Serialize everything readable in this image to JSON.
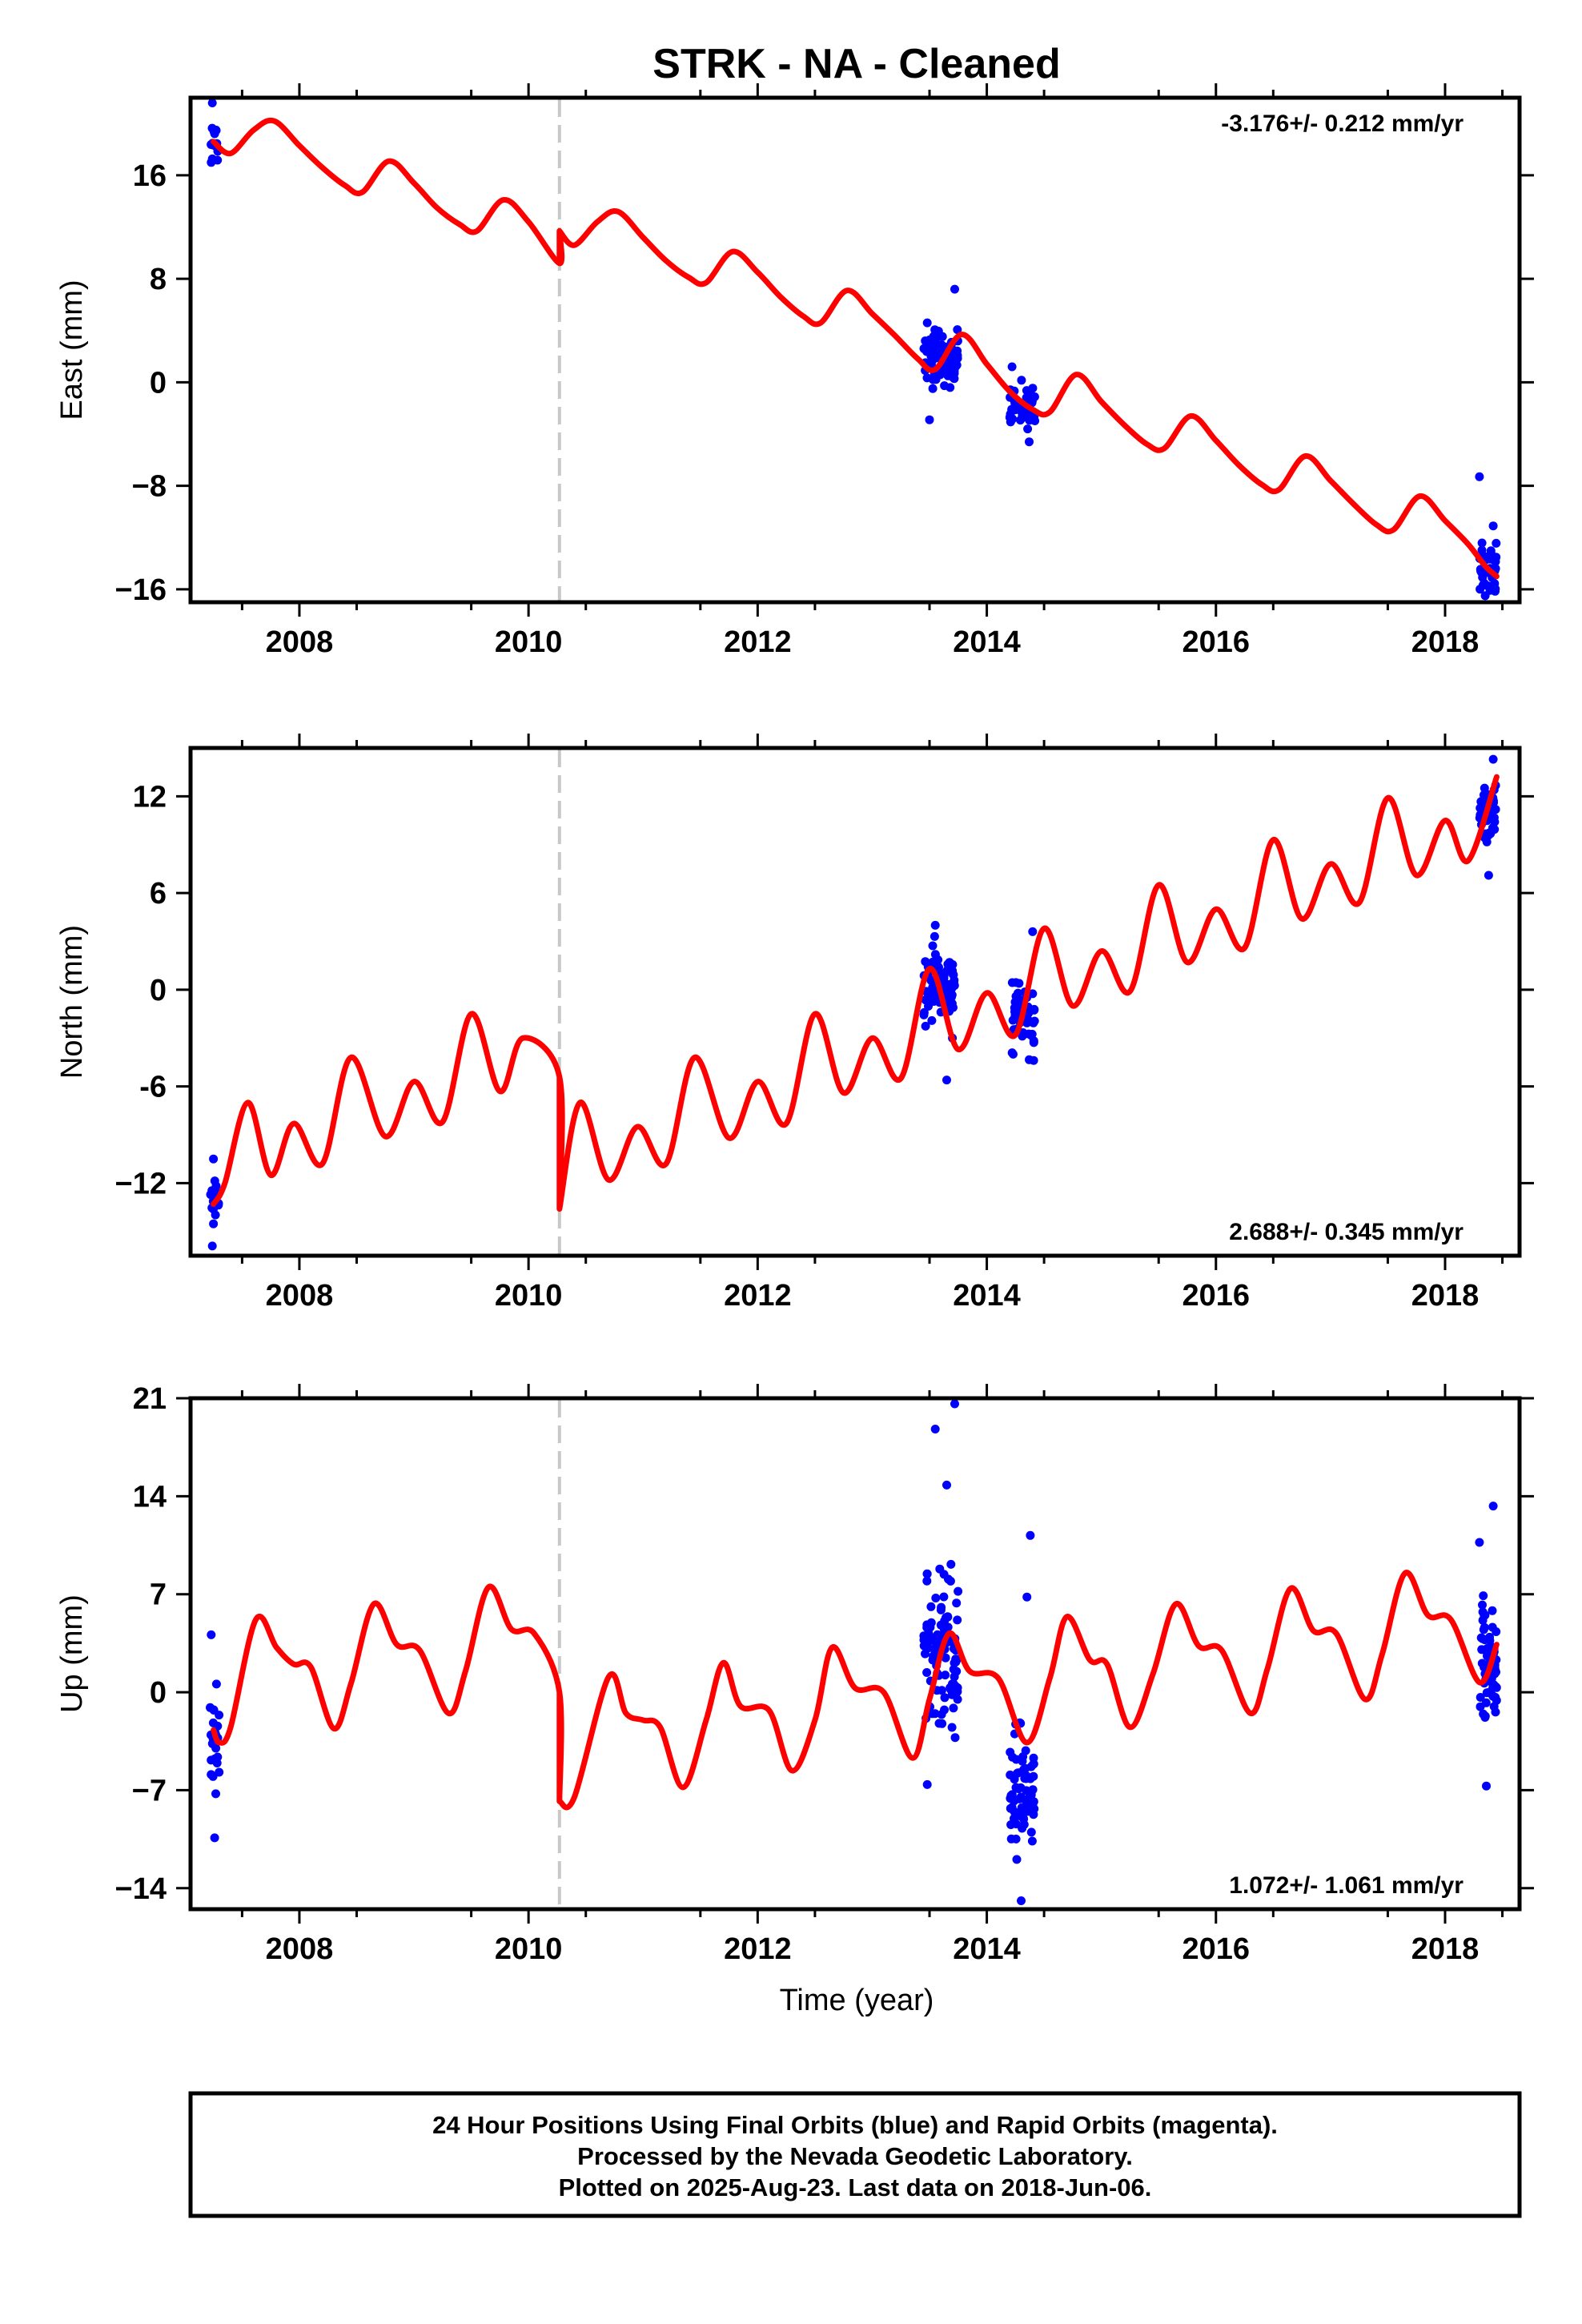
{
  "chart_data": {
    "type": "scatter",
    "title": "STRK  - NA - Cleaned",
    "xlabel": "Time (year)",
    "xlim": [
      2007.05,
      2018.65
    ],
    "x_ticks": [
      2008,
      2010,
      2012,
      2014,
      2016,
      2018
    ],
    "x_tick_labels": [
      "2008",
      "2010",
      "2012",
      "2014",
      "2016",
      "2018"
    ],
    "grid": false,
    "offset_epoch": 2010.27,
    "colors": {
      "observations": "#0000ff",
      "model": "#ff0000",
      "offset_line": "#c8c8c8",
      "frame": "#000000"
    },
    "panels": [
      {
        "ylabel": "East (mm)",
        "ylim": [
          -17,
          22
        ],
        "y_ticks": [
          -16,
          -8,
          0,
          8,
          16
        ],
        "y_tick_labels": [
          "−16",
          "−8",
          "0",
          "8",
          "16"
        ],
        "rate_label": "-3.176+/- 0.212 mm/yr",
        "rate_label_position": "top-right",
        "model_points": [
          [
            2007.25,
            18.6
          ],
          [
            2007.4,
            17.7
          ],
          [
            2007.6,
            19.5
          ],
          [
            2007.78,
            20.2
          ],
          [
            2008.0,
            18.3
          ],
          [
            2008.2,
            16.6
          ],
          [
            2008.4,
            15.2
          ],
          [
            2008.55,
            14.7
          ],
          [
            2008.78,
            17.1
          ],
          [
            2009.0,
            15.4
          ],
          [
            2009.2,
            13.5
          ],
          [
            2009.4,
            12.2
          ],
          [
            2009.55,
            11.7
          ],
          [
            2009.78,
            14.1
          ],
          [
            2010.0,
            12.4
          ],
          [
            2010.27,
            9.2
          ],
          [
            2010.27,
            11.7
          ],
          [
            2010.4,
            10.6
          ],
          [
            2010.6,
            12.4
          ],
          [
            2010.78,
            13.2
          ],
          [
            2011.0,
            11.2
          ],
          [
            2011.2,
            9.4
          ],
          [
            2011.4,
            8.1
          ],
          [
            2011.55,
            7.7
          ],
          [
            2011.78,
            10.1
          ],
          [
            2012.0,
            8.5
          ],
          [
            2012.2,
            6.6
          ],
          [
            2012.4,
            5.1
          ],
          [
            2012.55,
            4.6
          ],
          [
            2012.78,
            7.1
          ],
          [
            2013.0,
            5.3
          ],
          [
            2013.2,
            3.6
          ],
          [
            2013.4,
            1.8
          ],
          [
            2013.55,
            1.0
          ],
          [
            2013.78,
            3.7
          ],
          [
            2014.0,
            1.4
          ],
          [
            2014.2,
            -0.7
          ],
          [
            2014.4,
            -2.1
          ],
          [
            2014.55,
            -2.3
          ],
          [
            2014.78,
            0.6
          ],
          [
            2015.0,
            -1.5
          ],
          [
            2015.2,
            -3.3
          ],
          [
            2015.4,
            -4.8
          ],
          [
            2015.55,
            -5.1
          ],
          [
            2015.78,
            -2.6
          ],
          [
            2016.0,
            -4.5
          ],
          [
            2016.2,
            -6.4
          ],
          [
            2016.4,
            -7.9
          ],
          [
            2016.55,
            -8.3
          ],
          [
            2016.78,
            -5.7
          ],
          [
            2017.0,
            -7.6
          ],
          [
            2017.2,
            -9.4
          ],
          [
            2017.4,
            -11.0
          ],
          [
            2017.55,
            -11.4
          ],
          [
            2017.78,
            -8.8
          ],
          [
            2018.0,
            -10.7
          ],
          [
            2018.2,
            -12.5
          ],
          [
            2018.35,
            -14.2
          ],
          [
            2018.45,
            -15.0
          ]
        ],
        "clusters": [
          {
            "t_range": [
              2007.22,
              2007.3
            ],
            "count": 14,
            "center": 18.6,
            "spread": 1.2,
            "outliers": [
              [
                2007.24,
                21.6
              ],
              [
                2007.23,
                17.0
              ]
            ]
          },
          {
            "t_range": [
              2013.45,
              2013.75
            ],
            "count": 90,
            "center": 1.8,
            "spread": 1.4,
            "outliers": [
              [
                2013.72,
                7.2
              ],
              [
                2013.5,
                -2.9
              ],
              [
                2013.48,
                4.6
              ]
            ]
          },
          {
            "t_range": [
              2014.2,
              2014.42
            ],
            "count": 45,
            "center": -2.0,
            "spread": 1.3,
            "outliers": [
              [
                2014.22,
                1.2
              ],
              [
                2014.37,
                -4.6
              ]
            ]
          },
          {
            "t_range": [
              2018.3,
              2018.45
            ],
            "count": 40,
            "center": -14.2,
            "spread": 1.2,
            "outliers": [
              [
                2018.3,
                -7.3
              ],
              [
                2018.42,
                -11.1
              ],
              [
                2018.35,
                -16.5
              ]
            ]
          }
        ]
      },
      {
        "ylabel": "North (mm)",
        "ylim": [
          -16.5,
          15
        ],
        "y_ticks": [
          -12,
          -6,
          0,
          6,
          12
        ],
        "y_tick_labels": [
          "−12",
          "-6",
          "0",
          "6",
          "12"
        ],
        "rate_label": "2.688+/- 0.345 mm/yr",
        "rate_label_position": "bottom-right",
        "model_points": [
          [
            2007.25,
            -13.3
          ],
          [
            2007.35,
            -12.0
          ],
          [
            2007.55,
            -7.0
          ],
          [
            2007.75,
            -11.5
          ],
          [
            2007.95,
            -8.3
          ],
          [
            2008.2,
            -10.8
          ],
          [
            2008.45,
            -4.2
          ],
          [
            2008.75,
            -9.1
          ],
          [
            2009.0,
            -5.7
          ],
          [
            2009.25,
            -8.2
          ],
          [
            2009.5,
            -1.5
          ],
          [
            2009.75,
            -6.3
          ],
          [
            2009.95,
            -3.0
          ],
          [
            2010.27,
            -5.4
          ],
          [
            2010.27,
            -13.6
          ],
          [
            2010.45,
            -7.0
          ],
          [
            2010.7,
            -11.8
          ],
          [
            2010.95,
            -8.5
          ],
          [
            2011.2,
            -10.8
          ],
          [
            2011.45,
            -4.2
          ],
          [
            2011.75,
            -9.2
          ],
          [
            2012.0,
            -5.7
          ],
          [
            2012.25,
            -8.3
          ],
          [
            2012.5,
            -1.5
          ],
          [
            2012.75,
            -6.4
          ],
          [
            2013.0,
            -3.0
          ],
          [
            2013.25,
            -5.5
          ],
          [
            2013.5,
            1.3
          ],
          [
            2013.75,
            -3.7
          ],
          [
            2014.0,
            -0.2
          ],
          [
            2014.25,
            -2.8
          ],
          [
            2014.5,
            3.8
          ],
          [
            2014.75,
            -1.0
          ],
          [
            2015.0,
            2.4
          ],
          [
            2015.25,
            -0.1
          ],
          [
            2015.5,
            6.5
          ],
          [
            2015.75,
            1.7
          ],
          [
            2016.0,
            5.0
          ],
          [
            2016.25,
            2.6
          ],
          [
            2016.5,
            9.3
          ],
          [
            2016.75,
            4.4
          ],
          [
            2017.0,
            7.8
          ],
          [
            2017.25,
            5.4
          ],
          [
            2017.5,
            11.9
          ],
          [
            2017.75,
            7.1
          ],
          [
            2018.0,
            10.5
          ],
          [
            2018.2,
            8.0
          ],
          [
            2018.45,
            13.2
          ]
        ],
        "clusters": [
          {
            "t_range": [
              2007.22,
              2007.3
            ],
            "count": 16,
            "center": -13.0,
            "spread": 1.4,
            "outliers": [
              [
                2007.25,
                -10.5
              ],
              [
                2007.24,
                -15.9
              ]
            ]
          },
          {
            "t_range": [
              2013.45,
              2013.72
            ],
            "count": 85,
            "center": 0.3,
            "spread": 1.6,
            "outliers": [
              [
                2013.55,
                4.0
              ],
              [
                2013.65,
                -5.6
              ],
              [
                2013.7,
                -3.0
              ]
            ]
          },
          {
            "t_range": [
              2014.22,
              2014.42
            ],
            "count": 50,
            "center": -1.5,
            "spread": 1.6,
            "outliers": [
              [
                2014.4,
                3.6
              ],
              [
                2014.23,
                -4.0
              ]
            ]
          },
          {
            "t_range": [
              2018.3,
              2018.45
            ],
            "count": 45,
            "center": 11.0,
            "spread": 1.3,
            "outliers": [
              [
                2018.42,
                14.3
              ],
              [
                2018.38,
                7.1
              ]
            ]
          }
        ]
      },
      {
        "ylabel": "Up (mm)",
        "ylim": [
          -15.5,
          21
        ],
        "y_ticks": [
          -14,
          -7,
          0,
          7,
          14,
          21
        ],
        "y_tick_labels": [
          "−14",
          "−7",
          "0",
          "7",
          "14",
          "21"
        ],
        "rate_label": "1.072+/- 1.061 mm/yr",
        "rate_label_position": "bottom-right",
        "model_points": [
          [
            2007.25,
            -2.7
          ],
          [
            2007.3,
            -3.6
          ],
          [
            2007.4,
            -2.5
          ],
          [
            2007.62,
            5.2
          ],
          [
            2007.8,
            3.2
          ],
          [
            2007.95,
            2.0
          ],
          [
            2008.1,
            1.8
          ],
          [
            2008.3,
            -2.6
          ],
          [
            2008.45,
            0.6
          ],
          [
            2008.65,
            6.3
          ],
          [
            2008.85,
            3.4
          ],
          [
            2009.05,
            3.0
          ],
          [
            2009.3,
            -1.5
          ],
          [
            2009.45,
            1.5
          ],
          [
            2009.65,
            7.5
          ],
          [
            2009.85,
            4.5
          ],
          [
            2010.05,
            4.2
          ],
          [
            2010.27,
            0.0
          ],
          [
            2010.27,
            -7.8
          ],
          [
            2010.4,
            -7.5
          ],
          [
            2010.7,
            1.1
          ],
          [
            2010.85,
            -1.5
          ],
          [
            2011.0,
            -2.0
          ],
          [
            2011.15,
            -2.5
          ],
          [
            2011.35,
            -6.8
          ],
          [
            2011.55,
            -2.0
          ],
          [
            2011.7,
            2.1
          ],
          [
            2011.85,
            -1.0
          ],
          [
            2012.1,
            -1.3
          ],
          [
            2012.3,
            -5.6
          ],
          [
            2012.5,
            -2.0
          ],
          [
            2012.65,
            3.2
          ],
          [
            2012.85,
            0.3
          ],
          [
            2013.1,
            0.0
          ],
          [
            2013.35,
            -4.7
          ],
          [
            2013.5,
            -0.5
          ],
          [
            2013.67,
            4.2
          ],
          [
            2013.85,
            1.5
          ],
          [
            2014.1,
            1.0
          ],
          [
            2014.35,
            -3.6
          ],
          [
            2014.55,
            1.0
          ],
          [
            2014.7,
            5.4
          ],
          [
            2014.9,
            2.3
          ],
          [
            2015.05,
            2.0
          ],
          [
            2015.25,
            -2.5
          ],
          [
            2015.45,
            1.3
          ],
          [
            2015.65,
            6.3
          ],
          [
            2015.85,
            3.3
          ],
          [
            2016.05,
            3.0
          ],
          [
            2016.3,
            -1.5
          ],
          [
            2016.45,
            1.7
          ],
          [
            2016.65,
            7.4
          ],
          [
            2016.85,
            4.4
          ],
          [
            2017.05,
            4.2
          ],
          [
            2017.3,
            -0.5
          ],
          [
            2017.45,
            2.7
          ],
          [
            2017.65,
            8.5
          ],
          [
            2017.85,
            5.5
          ],
          [
            2018.05,
            5.2
          ],
          [
            2018.3,
            0.7
          ],
          [
            2018.45,
            3.4
          ]
        ],
        "clusters": [
          {
            "t_range": [
              2007.22,
              2007.3
            ],
            "count": 22,
            "center": -3.0,
            "spread": 2.8,
            "outliers": [
              [
                2007.23,
                4.1
              ],
              [
                2007.26,
                -10.4
              ]
            ]
          },
          {
            "t_range": [
              2013.45,
              2013.75
            ],
            "count": 100,
            "center": 2.5,
            "spread": 4.0,
            "outliers": [
              [
                2013.55,
                18.8
              ],
              [
                2013.72,
                20.6
              ],
              [
                2013.65,
                14.8
              ],
              [
                2013.48,
                -6.6
              ]
            ]
          },
          {
            "t_range": [
              2014.2,
              2014.42
            ],
            "count": 75,
            "center": -7.5,
            "spread": 3.0,
            "outliers": [
              [
                2014.38,
                11.2
              ],
              [
                2014.35,
                6.8
              ],
              [
                2014.3,
                -14.9
              ]
            ]
          },
          {
            "t_range": [
              2018.3,
              2018.45
            ],
            "count": 70,
            "center": 2.5,
            "spread": 3.2,
            "outliers": [
              [
                2018.42,
                13.3
              ],
              [
                2018.3,
                10.7
              ],
              [
                2018.36,
                -6.7
              ]
            ]
          }
        ]
      }
    ]
  },
  "footer": {
    "lines": [
      "24 Hour Positions Using Final Orbits (blue) and Rapid Orbits (magenta).",
      "Processed by the Nevada Geodetic Laboratory.",
      "Plotted on 2025-Aug-23. Last data on 2018-Jun-06."
    ]
  }
}
